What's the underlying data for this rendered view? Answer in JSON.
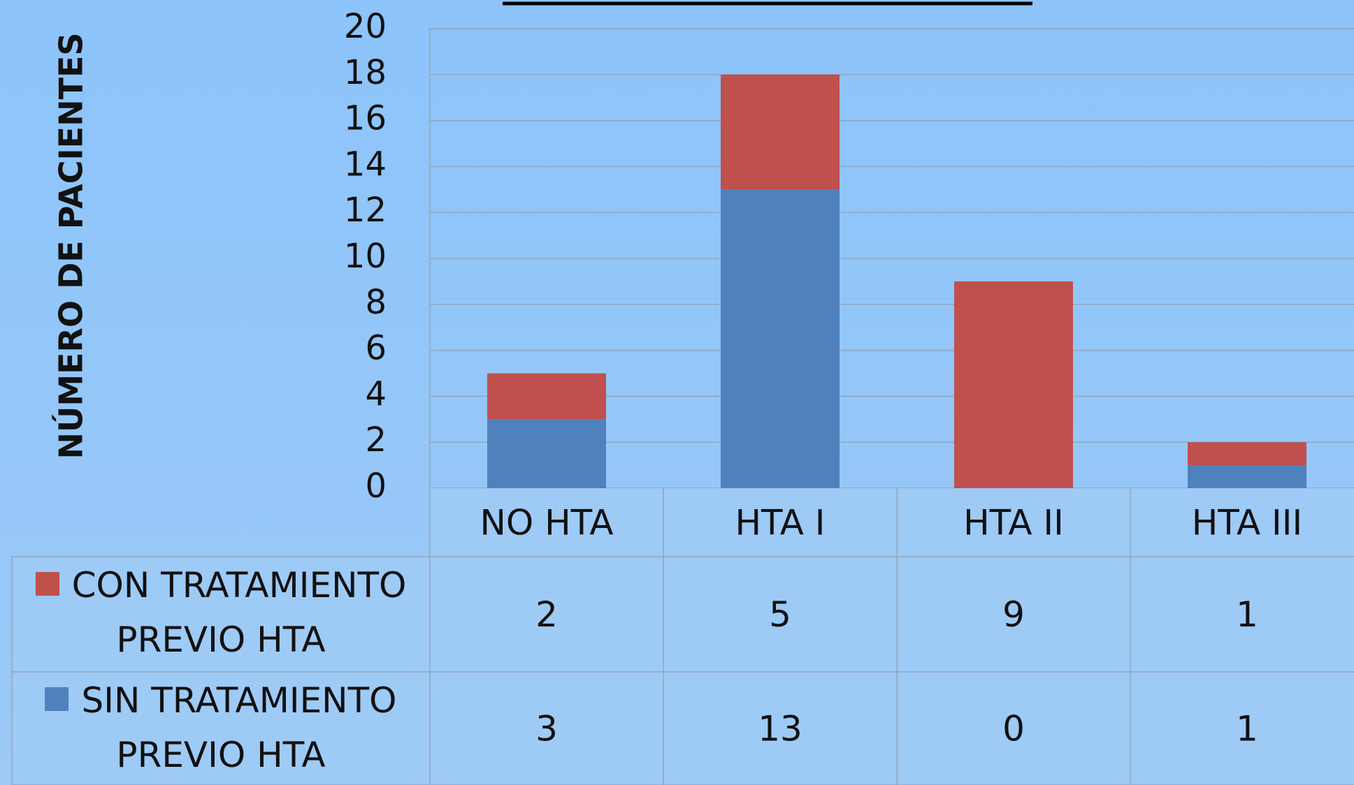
{
  "chart_data": {
    "type": "stacked_bar",
    "y_label": "NÚMERO DE PACIENTES",
    "categories": [
      "NO HTA",
      "HTA I",
      "HTA II",
      "HTA III"
    ],
    "series": [
      {
        "name": "CON TRATAMIENTO PREVIO HTA",
        "color": "#c0504d",
        "values": [
          2,
          5,
          9,
          1
        ]
      },
      {
        "name": "SIN TRATAMIENTO PREVIO HTA",
        "color": "#4f81bd",
        "values": [
          3,
          13,
          0,
          1
        ]
      }
    ],
    "ylim": [
      0,
      20
    ],
    "yticks": [
      0,
      2,
      4,
      6,
      8,
      10,
      12,
      14,
      16,
      18,
      20
    ],
    "grid": true
  }
}
